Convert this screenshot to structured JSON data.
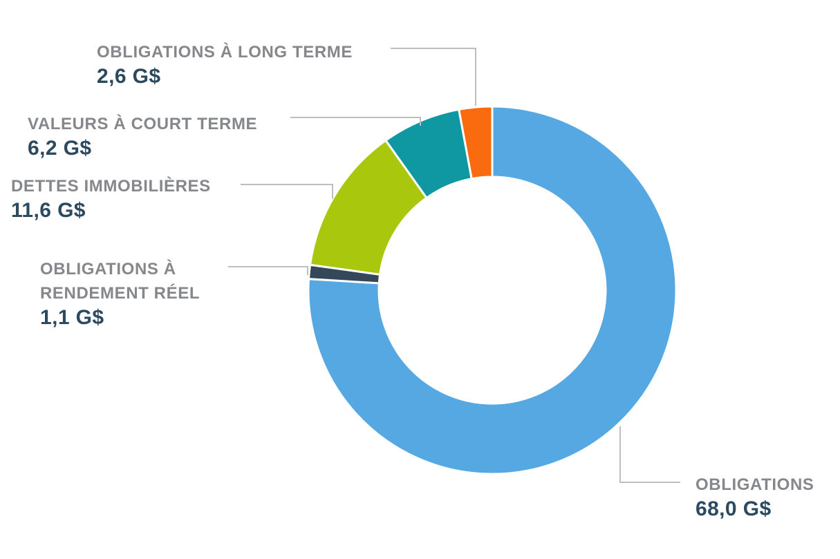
{
  "page": {
    "background_color": "#FFFFFF"
  },
  "chart_data": {
    "type": "pie",
    "subtype": "donut",
    "unit": "G$",
    "decimal_separator": ",",
    "legend_position": "callout-labels-with-leader-lines",
    "total": 89.5,
    "slices": [
      {
        "id": "obligations-a-long-terme",
        "label": "OBLIGATIONS À LONG TERME",
        "value": 2.6,
        "display_value": "2,6 G$",
        "color": "#FA6B0F"
      },
      {
        "id": "valeurs-a-court-terme",
        "label": "VALEURS À COURT TERME",
        "value": 6.2,
        "display_value": "6,2 G$",
        "color": "#0F98A2"
      },
      {
        "id": "dettes-immobilieres",
        "label": "DETTES IMMOBILIÈRES",
        "value": 11.6,
        "display_value": "11,6 G$",
        "color": "#A9C80D"
      },
      {
        "id": "obligations-a-rendement-reel",
        "label": "OBLIGATIONS À RENDEMENT RÉEL",
        "value": 1.1,
        "display_value": "1,1 G$",
        "color": "#35485A"
      },
      {
        "id": "obligations",
        "label": "OBLIGATIONS",
        "value": 68.0,
        "display_value": "68,0 G$",
        "color": "#55A8E1"
      }
    ],
    "colors": {
      "label_text": "#85878A",
      "value_text": "#2B4A60",
      "leader_line": "#BDBEC0",
      "slice_gap": "#FFFFFF"
    }
  }
}
